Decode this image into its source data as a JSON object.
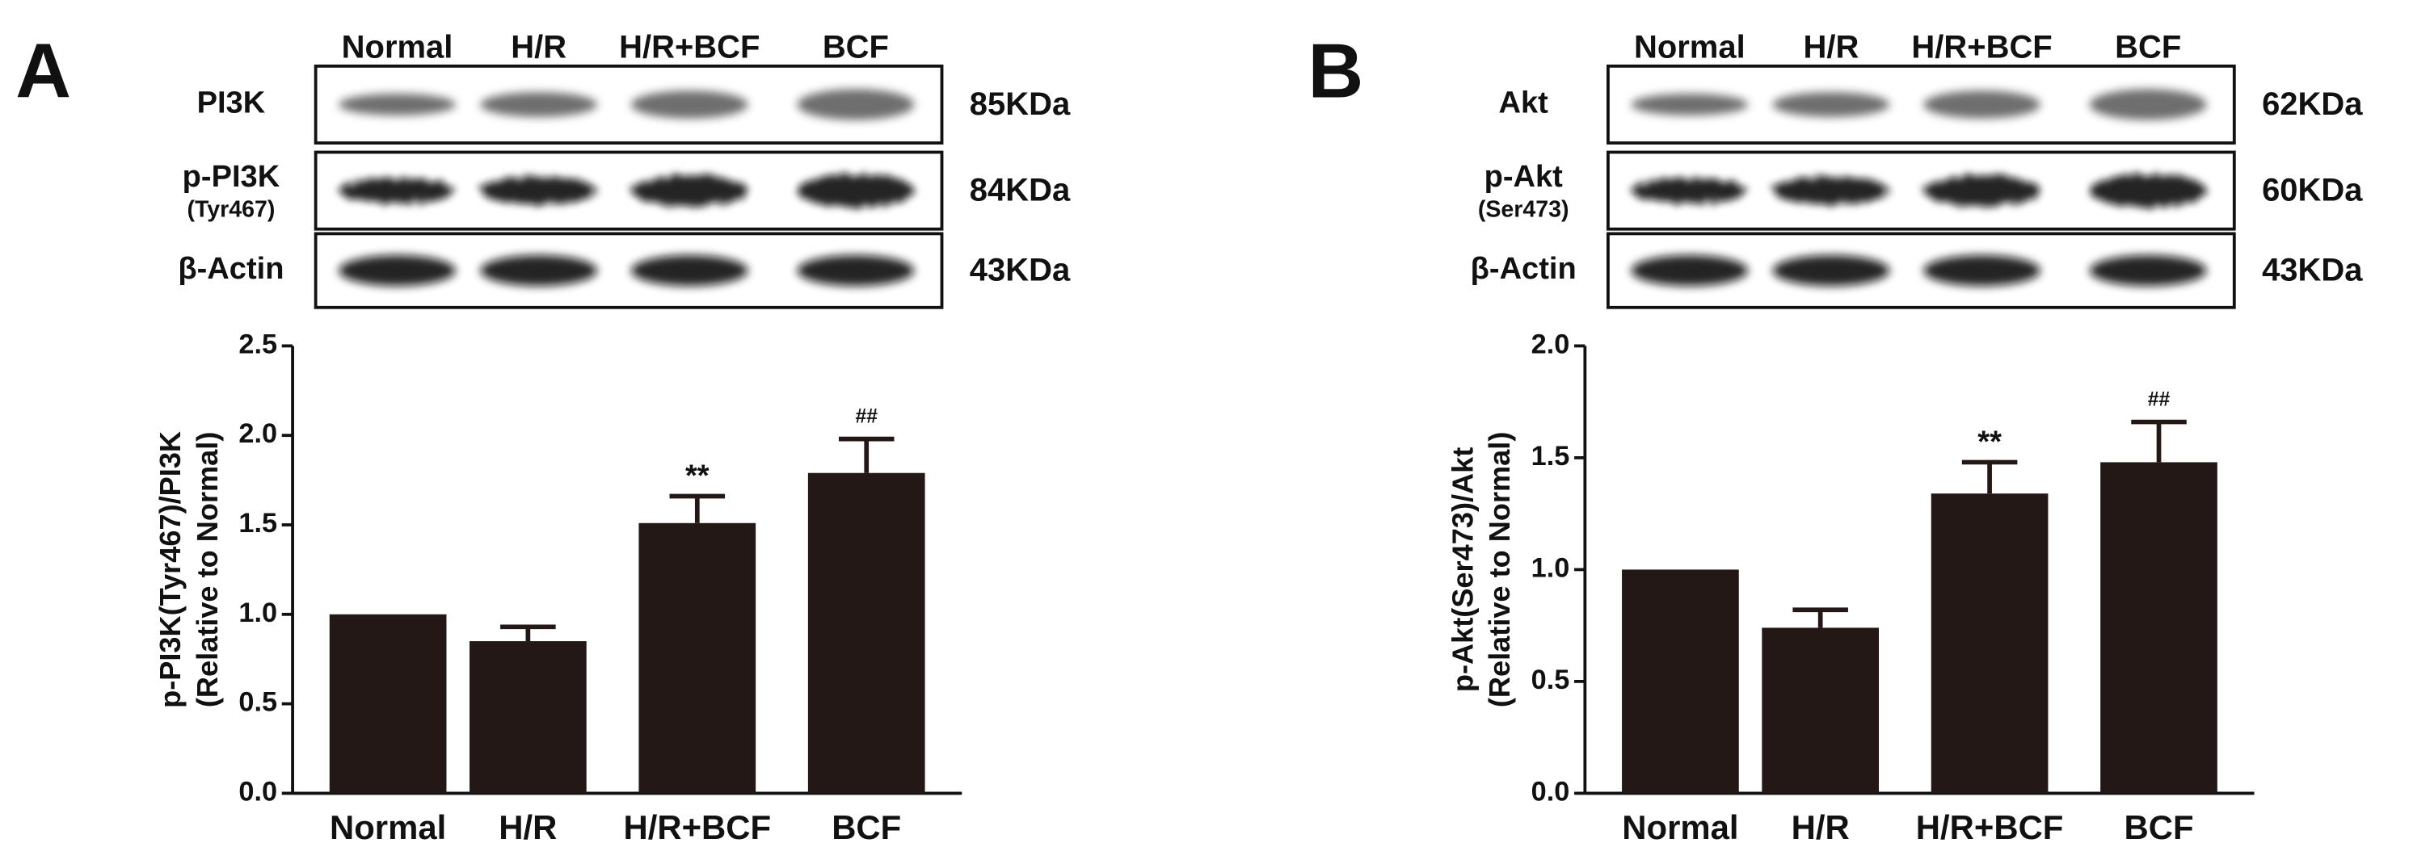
{
  "chart_data": [
    {
      "type": "bar",
      "panel": "A",
      "blot": {
        "lanes": [
          "Normal",
          "H/R",
          "H/R+BCF",
          "BCF"
        ],
        "rows": [
          {
            "name": "PI3K",
            "size": "85KDa"
          },
          {
            "name": "p-PI3K",
            "sub": "(Tyr467)",
            "size": "84KDa"
          },
          {
            "name": "β-Actin",
            "size": "43KDa"
          }
        ]
      },
      "ylabel": [
        "p-PI3K(Tyr467)/PI3K",
        "(Relative to Normal)"
      ],
      "categories": [
        "Normal",
        "H/R",
        "H/R+BCF",
        "BCF"
      ],
      "series": [
        {
          "color": "#231815",
          "values": [
            1.0,
            0.85,
            1.51,
            1.79
          ],
          "errors": [
            null,
            0.08,
            0.15,
            0.19
          ],
          "annotations": [
            null,
            null,
            "**",
            "##"
          ]
        }
      ],
      "ylim": [
        0,
        2.5
      ],
      "yticks": [
        {
          "value": 0,
          "label": "0.0"
        },
        0.5,
        {
          "value": 1,
          "label": "1.0"
        },
        1.5,
        {
          "value": 2,
          "label": "2.0"
        },
        2.5
      ]
    },
    {
      "type": "bar",
      "panel": "B",
      "blot": {
        "lanes": [
          "Normal",
          "H/R",
          "H/R+BCF",
          "BCF"
        ],
        "rows": [
          {
            "name": "Akt",
            "size": "62KDa"
          },
          {
            "name": "p-Akt",
            "sub": "(Ser473)",
            "size": "60KDa"
          },
          {
            "name": "β-Actin",
            "size": "43KDa"
          }
        ]
      },
      "ylabel": [
        "p-Akt(Ser473)/Akt",
        "(Relative to Normal)"
      ],
      "categories": [
        "Normal",
        "H/R",
        "H/R+BCF",
        "BCF"
      ],
      "series": [
        {
          "color": "#231815",
          "values": [
            1.0,
            0.74,
            1.34,
            1.48
          ],
          "errors": [
            null,
            0.08,
            0.14,
            0.18
          ],
          "annotations": [
            null,
            null,
            "**",
            "##"
          ]
        }
      ],
      "ylim": [
        0,
        2.0
      ],
      "yticks": [
        {
          "value": 0,
          "label": "0.0"
        },
        0.5,
        {
          "value": 1,
          "label": "1.0"
        },
        1.5,
        {
          "value": 2,
          "label": "2.0"
        }
      ]
    }
  ]
}
